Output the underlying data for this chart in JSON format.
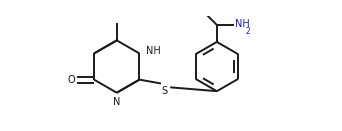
{
  "line_color": "#1a1a1a",
  "bg_color": "#ffffff",
  "line_width": 1.4,
  "figsize": [
    3.42,
    1.31
  ],
  "dpi": 100,
  "label_NH": "NH",
  "label_N": "N",
  "label_O": "O",
  "label_S": "S",
  "label_NH2": "NH",
  "label_NH2_sub": "2",
  "text_color": "#1a1a1a",
  "text_color_blue": "#1a1acd"
}
